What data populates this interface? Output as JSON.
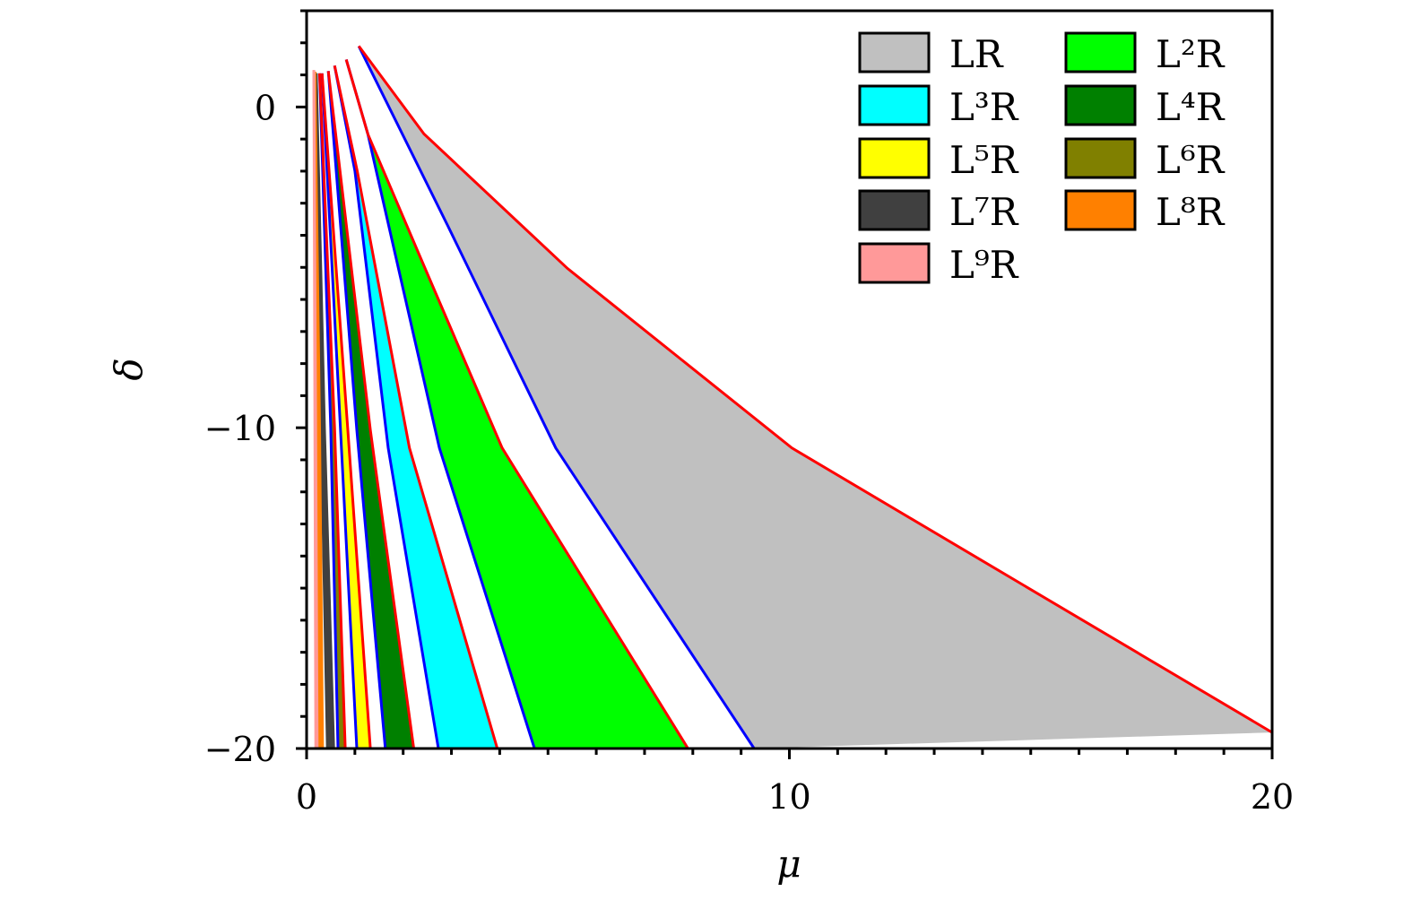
{
  "chart_data": {
    "type": "area",
    "xlabel": "μ",
    "ylabel": "δ",
    "xlim": [
      0,
      20
    ],
    "ylim": [
      -20,
      3
    ],
    "x_major_ticks": [
      0,
      10,
      20
    ],
    "x_tick_labels": [
      "0",
      "10",
      "20"
    ],
    "y_major_ticks": [
      0,
      -10,
      -20
    ],
    "y_tick_labels": [
      "0",
      "−10",
      "−20"
    ],
    "minor_tick_step": 1,
    "grid": false,
    "legend_placement": "top-right",
    "legend_columns": 2,
    "boundary_colors": {
      "left": "#0000ff",
      "right": "#ff0000"
    },
    "regions": [
      {
        "name": "LR",
        "color": "#c0c0c0",
        "left": [
          [
            1.08,
            1.9
          ],
          [
            2.93,
            -3.72
          ],
          [
            5.16,
            -10.63
          ],
          [
            9.27,
            -20
          ]
        ],
        "right": [
          [
            1.08,
            1.9
          ],
          [
            2.43,
            -0.84
          ],
          [
            5.4,
            -5.03
          ],
          [
            10.05,
            -10.63
          ],
          [
            20,
            -19.5
          ]
        ]
      },
      {
        "name": "L²R",
        "color": "#00ff00",
        "left": [
          [
            0.82,
            1.48
          ],
          [
            1.27,
            -0.85
          ],
          [
            2.0,
            -5.68
          ],
          [
            2.75,
            -10.63
          ],
          [
            4.72,
            -20
          ]
        ],
        "right": [
          [
            0.82,
            1.48
          ],
          [
            1.27,
            -0.85
          ],
          [
            2.32,
            -4.56
          ],
          [
            4.05,
            -10.63
          ],
          [
            7.9,
            -20
          ]
        ]
      },
      {
        "name": "L³R",
        "color": "#00ffff",
        "left": [
          [
            0.58,
            1.29
          ],
          [
            1.0,
            -2.0
          ],
          [
            1.69,
            -10.63
          ],
          [
            2.73,
            -20
          ]
        ],
        "right": [
          [
            0.58,
            1.29
          ],
          [
            1.05,
            -2.0
          ],
          [
            2.13,
            -10.63
          ],
          [
            3.95,
            -20
          ]
        ]
      },
      {
        "name": "L⁴R",
        "color": "#008000",
        "left": [
          [
            0.45,
            1.12
          ],
          [
            1.04,
            -10.07
          ],
          [
            1.63,
            -20
          ]
        ],
        "right": [
          [
            0.45,
            1.12
          ],
          [
            1.32,
            -10.07
          ],
          [
            2.22,
            -20
          ]
        ]
      },
      {
        "name": "L⁵R",
        "color": "#ffff00",
        "left": [
          [
            0.32,
            1.05
          ],
          [
            0.7,
            -10
          ],
          [
            1.04,
            -20
          ]
        ],
        "right": [
          [
            0.32,
            1.05
          ],
          [
            0.85,
            -10
          ],
          [
            1.32,
            -20
          ]
        ]
      },
      {
        "name": "L⁶R",
        "color": "#808000",
        "left": [
          [
            0.27,
            1.05
          ],
          [
            0.5,
            -10
          ],
          [
            0.65,
            -20
          ]
        ],
        "right": [
          [
            0.27,
            1.05
          ],
          [
            0.58,
            -10
          ],
          [
            0.8,
            -20
          ]
        ]
      },
      {
        "name": "L⁷R",
        "color": "#404040",
        "left": [
          [
            0.2,
            1.05
          ],
          [
            0.3,
            -10
          ],
          [
            0.43,
            -20
          ]
        ],
        "right": [
          [
            0.2,
            1.05
          ],
          [
            0.37,
            -10
          ],
          [
            0.56,
            -20
          ]
        ]
      },
      {
        "name": "L⁸R",
        "color": "#ff8000",
        "left": [
          [
            0.17,
            1.1
          ],
          [
            0.22,
            -10
          ],
          [
            0.24,
            -20
          ]
        ],
        "right": [
          [
            0.17,
            1.1
          ],
          [
            0.27,
            -10
          ],
          [
            0.33,
            -20
          ]
        ]
      },
      {
        "name": "L⁹R",
        "color": "#ff9999",
        "left": [
          [
            0.15,
            1.15
          ],
          [
            0.17,
            -10
          ],
          [
            0.19,
            -20
          ]
        ],
        "right": [
          [
            0.15,
            1.15
          ],
          [
            0.19,
            -10
          ],
          [
            0.22,
            -20
          ]
        ]
      }
    ]
  }
}
